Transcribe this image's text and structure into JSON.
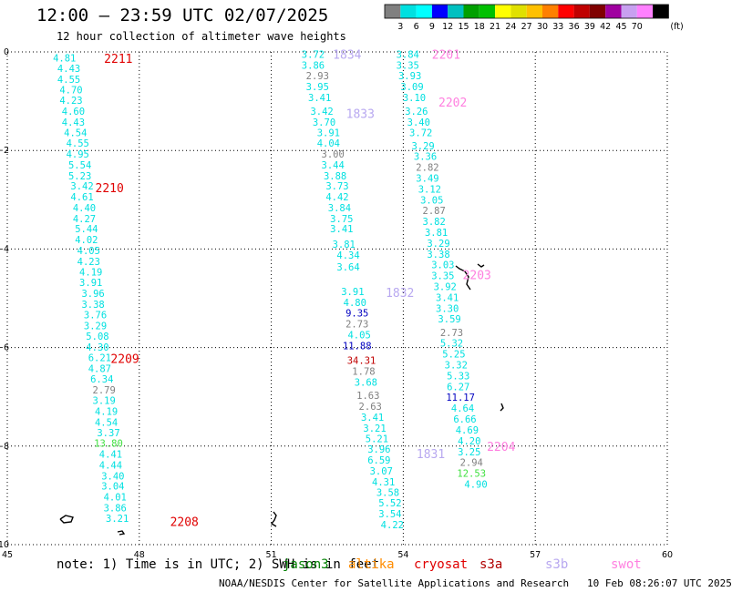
{
  "header": {
    "title": "12:00 – 23:59 UTC 02/07/2025",
    "subtitle": "12 hour collection of altimeter wave heights"
  },
  "color_scale": {
    "unit": "(ft)",
    "ticks": [
      "3",
      "6",
      "9",
      "12",
      "15",
      "18",
      "21",
      "24",
      "27",
      "30",
      "33",
      "36",
      "39",
      "42",
      "45",
      "70"
    ],
    "colors": [
      "#808080",
      "#00e0e0",
      "#00ffff",
      "#0000ff",
      "#00c0c0",
      "#00a000",
      "#00c000",
      "#ffff00",
      "#e0e000",
      "#ffc000",
      "#ff8000",
      "#ff0000",
      "#c00000",
      "#800000",
      "#a000a0",
      "#c8a0f0",
      "#ff80ff",
      "#000000"
    ]
  },
  "footer": {
    "note": "note: 1) Time is in UTC; 2) SWH is in feet",
    "credit": "NOAA/NESDIS Center for Satellite Applications and Research   10 Feb 08:26:07 UTC 2025",
    "satellites": [
      {
        "name": "jason3",
        "color": "#008000"
      },
      {
        "name": "altika",
        "color": "#ff8c00"
      },
      {
        "name": "cryosat",
        "color": "#e00000"
      },
      {
        "name": "s3a",
        "color": "#b00000"
      },
      {
        "name": "s3b",
        "color": "#b8a8f0"
      },
      {
        "name": "swot",
        "color": "#ff80e0"
      }
    ]
  },
  "chart_data": {
    "type": "scatter",
    "title": "12:00 – 23:59 UTC 02/07/2025",
    "xlim": [
      45,
      60
    ],
    "ylim": [
      -10,
      0
    ],
    "x_ticks": [
      "45",
      "48",
      "51",
      "54",
      "57",
      "60"
    ],
    "y_ticks": [
      "0",
      "−2",
      "−4",
      "−6",
      "−8",
      "−10"
    ],
    "grid": true,
    "point_colors": {
      "c": "#00e0e0",
      "g": "#808080",
      "b": "#0000c0",
      "d": "#c00000",
      "l": "#40e040"
    },
    "series": [
      {
        "name": "2211 / 2210 / 2209 / 2208",
        "values": [
          {
            "x": 46.3,
            "y": -0.12,
            "v": "4.81",
            "c": "c"
          },
          {
            "x": 46.4,
            "y": -0.33,
            "v": "4.43",
            "c": "c"
          },
          {
            "x": 46.4,
            "y": -0.55,
            "v": "4.55",
            "c": "c"
          },
          {
            "x": 46.45,
            "y": -0.77,
            "v": "4.70",
            "c": "c"
          },
          {
            "x": 46.45,
            "y": -0.98,
            "v": "4.23",
            "c": "c"
          },
          {
            "x": 46.5,
            "y": -1.2,
            "v": "4.60",
            "c": "c"
          },
          {
            "x": 46.5,
            "y": -1.42,
            "v": "4.43",
            "c": "c"
          },
          {
            "x": 46.55,
            "y": -1.64,
            "v": "4.54",
            "c": "c"
          },
          {
            "x": 46.6,
            "y": -1.85,
            "v": "4.55",
            "c": "c"
          },
          {
            "x": 46.6,
            "y": -2.07,
            "v": "4.95",
            "c": "c"
          },
          {
            "x": 46.65,
            "y": -2.29,
            "v": "5.54",
            "c": "c"
          },
          {
            "x": 46.65,
            "y": -2.51,
            "v": "5.23",
            "c": "c"
          },
          {
            "x": 46.7,
            "y": -2.72,
            "v": "3.42",
            "c": "c"
          },
          {
            "x": 46.7,
            "y": -2.94,
            "v": "4.61",
            "c": "c"
          },
          {
            "x": 46.75,
            "y": -3.16,
            "v": "4.40",
            "c": "c"
          },
          {
            "x": 46.75,
            "y": -3.38,
            "v": "4.27",
            "c": "c"
          },
          {
            "x": 46.8,
            "y": -3.59,
            "v": "5.44",
            "c": "c"
          },
          {
            "x": 46.8,
            "y": -3.81,
            "v": "4.02",
            "c": "c"
          },
          {
            "x": 46.85,
            "y": -4.03,
            "v": "4.05",
            "c": "c"
          },
          {
            "x": 46.85,
            "y": -4.25,
            "v": "4.23",
            "c": "c"
          },
          {
            "x": 46.9,
            "y": -4.46,
            "v": "4.19",
            "c": "c"
          },
          {
            "x": 46.9,
            "y": -4.68,
            "v": "3.91",
            "c": "c"
          },
          {
            "x": 46.95,
            "y": -4.9,
            "v": "3.96",
            "c": "c"
          },
          {
            "x": 46.95,
            "y": -5.12,
            "v": "3.38",
            "c": "c"
          },
          {
            "x": 47.0,
            "y": -5.33,
            "v": "3.76",
            "c": "c"
          },
          {
            "x": 47.0,
            "y": -5.55,
            "v": "3.29",
            "c": "c"
          },
          {
            "x": 47.05,
            "y": -5.77,
            "v": "5.08",
            "c": "c"
          },
          {
            "x": 47.05,
            "y": -5.99,
            "v": "4.30",
            "c": "c"
          },
          {
            "x": 47.1,
            "y": -6.2,
            "v": "6.21",
            "c": "c"
          },
          {
            "x": 47.1,
            "y": -6.42,
            "v": "4.87",
            "c": "c"
          },
          {
            "x": 47.15,
            "y": -6.64,
            "v": "6.34",
            "c": "c"
          },
          {
            "x": 47.2,
            "y": -6.86,
            "v": "2.79",
            "c": "g"
          },
          {
            "x": 47.2,
            "y": -7.07,
            "v": "3.19",
            "c": "c"
          },
          {
            "x": 47.25,
            "y": -7.29,
            "v": "4.19",
            "c": "c"
          },
          {
            "x": 47.25,
            "y": -7.51,
            "v": "4.54",
            "c": "c"
          },
          {
            "x": 47.3,
            "y": -7.73,
            "v": "3.37",
            "c": "c"
          },
          {
            "x": 47.3,
            "y": -7.94,
            "v": "13.80",
            "c": "l"
          },
          {
            "x": 47.35,
            "y": -8.16,
            "v": "4.41",
            "c": "c"
          },
          {
            "x": 47.35,
            "y": -8.38,
            "v": "4.44",
            "c": "c"
          },
          {
            "x": 47.4,
            "y": -8.6,
            "v": "3.40",
            "c": "c"
          },
          {
            "x": 47.4,
            "y": -8.81,
            "v": "3.04",
            "c": "c"
          },
          {
            "x": 47.45,
            "y": -9.03,
            "v": "4.01",
            "c": "c"
          },
          {
            "x": 47.45,
            "y": -9.25,
            "v": "3.86",
            "c": "c"
          },
          {
            "x": 47.5,
            "y": -9.46,
            "v": "3.21",
            "c": "c"
          }
        ]
      },
      {
        "name": "1834 / 1833 / 1832 / 1831",
        "values": [
          {
            "x": 51.95,
            "y": -0.05,
            "v": "3.72",
            "c": "c"
          },
          {
            "x": 51.95,
            "y": -0.27,
            "v": "3.86",
            "c": "c"
          },
          {
            "x": 52.05,
            "y": -0.48,
            "v": "2.93",
            "c": "g"
          },
          {
            "x": 52.05,
            "y": -0.7,
            "v": "3.95",
            "c": "c"
          },
          {
            "x": 52.1,
            "y": -0.92,
            "v": "3.41",
            "c": "c"
          },
          {
            "x": 52.15,
            "y": -1.2,
            "v": "3.42",
            "c": "c"
          },
          {
            "x": 52.2,
            "y": -1.42,
            "v": "3.70",
            "c": "c"
          },
          {
            "x": 52.3,
            "y": -1.64,
            "v": "3.91",
            "c": "c"
          },
          {
            "x": 52.3,
            "y": -1.85,
            "v": "4.04",
            "c": "c"
          },
          {
            "x": 52.4,
            "y": -2.07,
            "v": "3.00",
            "c": "g"
          },
          {
            "x": 52.4,
            "y": -2.29,
            "v": "3.44",
            "c": "c"
          },
          {
            "x": 52.45,
            "y": -2.51,
            "v": "3.88",
            "c": "c"
          },
          {
            "x": 52.5,
            "y": -2.72,
            "v": "3.73",
            "c": "c"
          },
          {
            "x": 52.5,
            "y": -2.94,
            "v": "4.42",
            "c": "c"
          },
          {
            "x": 52.55,
            "y": -3.16,
            "v": "3.84",
            "c": "c"
          },
          {
            "x": 52.6,
            "y": -3.38,
            "v": "3.75",
            "c": "c"
          },
          {
            "x": 52.6,
            "y": -3.59,
            "v": "3.41",
            "c": "c"
          },
          {
            "x": 52.65,
            "y": -3.9,
            "v": "3.81",
            "c": "c"
          },
          {
            "x": 52.75,
            "y": -4.12,
            "v": "4.34",
            "c": "c"
          },
          {
            "x": 52.75,
            "y": -4.36,
            "v": "3.64",
            "c": "c"
          },
          {
            "x": 52.85,
            "y": -4.86,
            "v": "3.91",
            "c": "c"
          },
          {
            "x": 52.9,
            "y": -5.08,
            "v": "4.80",
            "c": "c"
          },
          {
            "x": 52.95,
            "y": -5.3,
            "v": "9.35",
            "c": "b"
          },
          {
            "x": 52.95,
            "y": -5.52,
            "v": "2.73",
            "c": "g"
          },
          {
            "x": 53.0,
            "y": -5.74,
            "v": "4.05",
            "c": "c"
          },
          {
            "x": 52.95,
            "y": -5.96,
            "v": "11.88",
            "c": "b"
          },
          {
            "x": 53.05,
            "y": -6.26,
            "v": "34.31",
            "c": "d"
          },
          {
            "x": 53.1,
            "y": -6.48,
            "v": "1.78",
            "c": "g"
          },
          {
            "x": 53.15,
            "y": -6.7,
            "v": "3.68",
            "c": "c"
          },
          {
            "x": 53.2,
            "y": -6.97,
            "v": "1.63",
            "c": "g"
          },
          {
            "x": 53.25,
            "y": -7.19,
            "v": "2.63",
            "c": "g"
          },
          {
            "x": 53.3,
            "y": -7.41,
            "v": "3.41",
            "c": "c"
          },
          {
            "x": 53.35,
            "y": -7.63,
            "v": "3.21",
            "c": "c"
          },
          {
            "x": 53.4,
            "y": -7.85,
            "v": "5.21",
            "c": "c"
          },
          {
            "x": 53.45,
            "y": -8.06,
            "v": "3.96",
            "c": "c"
          },
          {
            "x": 53.45,
            "y": -8.28,
            "v": "6.59",
            "c": "c"
          },
          {
            "x": 53.5,
            "y": -8.5,
            "v": "3.07",
            "c": "c"
          },
          {
            "x": 53.55,
            "y": -8.72,
            "v": "4.31",
            "c": "c"
          },
          {
            "x": 53.65,
            "y": -8.94,
            "v": "3.58",
            "c": "c"
          },
          {
            "x": 53.7,
            "y": -9.15,
            "v": "5.52",
            "c": "c"
          },
          {
            "x": 53.7,
            "y": -9.37,
            "v": "3.54",
            "c": "c"
          },
          {
            "x": 53.75,
            "y": -9.59,
            "v": "4.22",
            "c": "c"
          }
        ]
      },
      {
        "name": "2201 / 2202 / 2203 / 2204",
        "values": [
          {
            "x": 54.1,
            "y": -0.05,
            "v": "3.84",
            "c": "c"
          },
          {
            "x": 54.1,
            "y": -0.27,
            "v": "3.35",
            "c": "c"
          },
          {
            "x": 54.15,
            "y": -0.48,
            "v": "3.93",
            "c": "c"
          },
          {
            "x": 54.2,
            "y": -0.7,
            "v": "3.09",
            "c": "c"
          },
          {
            "x": 54.25,
            "y": -0.92,
            "v": "3.10",
            "c": "c"
          },
          {
            "x": 54.3,
            "y": -1.2,
            "v": "3.26",
            "c": "c"
          },
          {
            "x": 54.35,
            "y": -1.42,
            "v": "3.40",
            "c": "c"
          },
          {
            "x": 54.4,
            "y": -1.64,
            "v": "3.72",
            "c": "c"
          },
          {
            "x": 54.45,
            "y": -1.9,
            "v": "3.29",
            "c": "c"
          },
          {
            "x": 54.5,
            "y": -2.12,
            "v": "3.36",
            "c": "c"
          },
          {
            "x": 54.55,
            "y": -2.34,
            "v": "2.82",
            "c": "g"
          },
          {
            "x": 54.55,
            "y": -2.56,
            "v": "3.49",
            "c": "c"
          },
          {
            "x": 54.6,
            "y": -2.78,
            "v": "3.12",
            "c": "c"
          },
          {
            "x": 54.65,
            "y": -3.0,
            "v": "3.05",
            "c": "c"
          },
          {
            "x": 54.7,
            "y": -3.22,
            "v": "2.87",
            "c": "g"
          },
          {
            "x": 54.7,
            "y": -3.44,
            "v": "3.82",
            "c": "c"
          },
          {
            "x": 54.75,
            "y": -3.66,
            "v": "3.81",
            "c": "c"
          },
          {
            "x": 54.8,
            "y": -3.88,
            "v": "3.29",
            "c": "c"
          },
          {
            "x": 54.8,
            "y": -4.1,
            "v": "3.38",
            "c": "c"
          },
          {
            "x": 54.9,
            "y": -4.32,
            "v": "3.03",
            "c": "c"
          },
          {
            "x": 54.9,
            "y": -4.54,
            "v": "3.35",
            "c": "c"
          },
          {
            "x": 54.95,
            "y": -4.76,
            "v": "3.92",
            "c": "c"
          },
          {
            "x": 55.0,
            "y": -4.98,
            "v": "3.41",
            "c": "c"
          },
          {
            "x": 55.0,
            "y": -5.2,
            "v": "3.30",
            "c": "c"
          },
          {
            "x": 55.05,
            "y": -5.42,
            "v": "3.59",
            "c": "c"
          },
          {
            "x": 55.1,
            "y": -5.69,
            "v": "2.73",
            "c": "g"
          },
          {
            "x": 55.1,
            "y": -5.91,
            "v": "5.32",
            "c": "c"
          },
          {
            "x": 55.15,
            "y": -6.13,
            "v": "5.25",
            "c": "c"
          },
          {
            "x": 55.2,
            "y": -6.35,
            "v": "3.32",
            "c": "c"
          },
          {
            "x": 55.25,
            "y": -6.57,
            "v": "5.33",
            "c": "c"
          },
          {
            "x": 55.25,
            "y": -6.79,
            "v": "6.27",
            "c": "c"
          },
          {
            "x": 55.3,
            "y": -7.01,
            "v": "11.17",
            "c": "b"
          },
          {
            "x": 55.35,
            "y": -7.23,
            "v": "4.64",
            "c": "c"
          },
          {
            "x": 55.4,
            "y": -7.45,
            "v": "6.66",
            "c": "c"
          },
          {
            "x": 55.45,
            "y": -7.67,
            "v": "4.69",
            "c": "c"
          },
          {
            "x": 55.5,
            "y": -7.89,
            "v": "4.20",
            "c": "c"
          },
          {
            "x": 55.5,
            "y": -8.11,
            "v": "3.25",
            "c": "c"
          },
          {
            "x": 55.55,
            "y": -8.33,
            "v": "2.94",
            "c": "g"
          },
          {
            "x": 55.55,
            "y": -8.55,
            "v": "12.53",
            "c": "l"
          },
          {
            "x": 55.65,
            "y": -8.77,
            "v": "4.90",
            "c": "c"
          }
        ]
      }
    ],
    "pass_labels": [
      {
        "text": "2211",
        "x": 47.2,
        "y": -0.13,
        "color": "#e00000"
      },
      {
        "text": "2210",
        "x": 47.0,
        "y": -2.75,
        "color": "#e00000"
      },
      {
        "text": "2209",
        "x": 47.35,
        "y": -6.22,
        "color": "#e00000"
      },
      {
        "text": "2208",
        "x": 48.7,
        "y": -9.53,
        "color": "#e00000"
      },
      {
        "text": "1834",
        "x": 52.4,
        "y": -0.05,
        "color": "#b8a8f0"
      },
      {
        "text": "1833",
        "x": 52.7,
        "y": -1.25,
        "color": "#b8a8f0"
      },
      {
        "text": "1832",
        "x": 53.6,
        "y": -4.88,
        "color": "#b8a8f0"
      },
      {
        "text": "1831",
        "x": 54.3,
        "y": -8.15,
        "color": "#b8a8f0"
      },
      {
        "text": "2201",
        "x": 54.65,
        "y": -0.05,
        "color": "#ff80e0"
      },
      {
        "text": "2202",
        "x": 54.8,
        "y": -1.02,
        "color": "#ff80e0"
      },
      {
        "text": "2203",
        "x": 55.35,
        "y": -4.52,
        "color": "#ff80e0"
      },
      {
        "text": "2204",
        "x": 55.9,
        "y": -8.0,
        "color": "#ff80e0"
      }
    ]
  }
}
